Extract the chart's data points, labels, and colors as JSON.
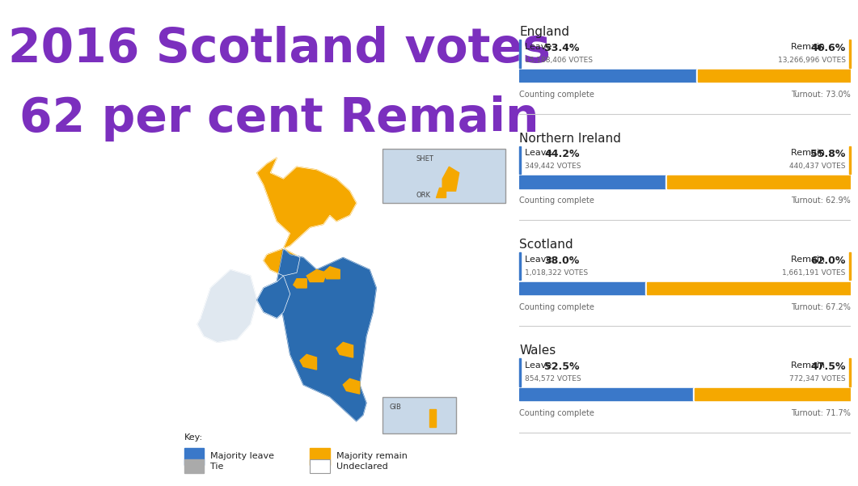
{
  "title_line1": "2016 Scotland votes",
  "title_line2": "62 per cent Remain",
  "title_color": "#7B2FBE",
  "bg_color": "#ffffff",
  "regions": [
    {
      "name": "England",
      "leave_pct": 53.4,
      "remain_pct": 46.6,
      "leave_votes": "15,188,406",
      "remain_votes": "13,266,996",
      "turnout": "73.0%"
    },
    {
      "name": "Northern Ireland",
      "leave_pct": 44.2,
      "remain_pct": 55.8,
      "leave_votes": "349,442",
      "remain_votes": "440,437",
      "turnout": "62.9%"
    },
    {
      "name": "Scotland",
      "leave_pct": 38.0,
      "remain_pct": 62.0,
      "leave_votes": "1,018,322",
      "remain_votes": "1,661,191",
      "turnout": "67.2%"
    },
    {
      "name": "Wales",
      "leave_pct": 52.5,
      "remain_pct": 47.5,
      "leave_votes": "854,572",
      "remain_votes": "772,347",
      "turnout": "71.7%"
    }
  ],
  "leave_color": "#3A78C9",
  "remain_color": "#F5A800",
  "map_bg": "#C8D8E8",
  "leave_map_color": "#2B6CB0",
  "remain_map_color": "#F5A800",
  "ireland_color": "#E0E8F0",
  "text_dark": "#222222",
  "text_mid": "#444444",
  "text_light": "#666666",
  "sep_color": "#CCCCCC",
  "key_colors": [
    "#3A78C9",
    "#F5A800",
    "#AAAAAA",
    "#FFFFFF"
  ]
}
